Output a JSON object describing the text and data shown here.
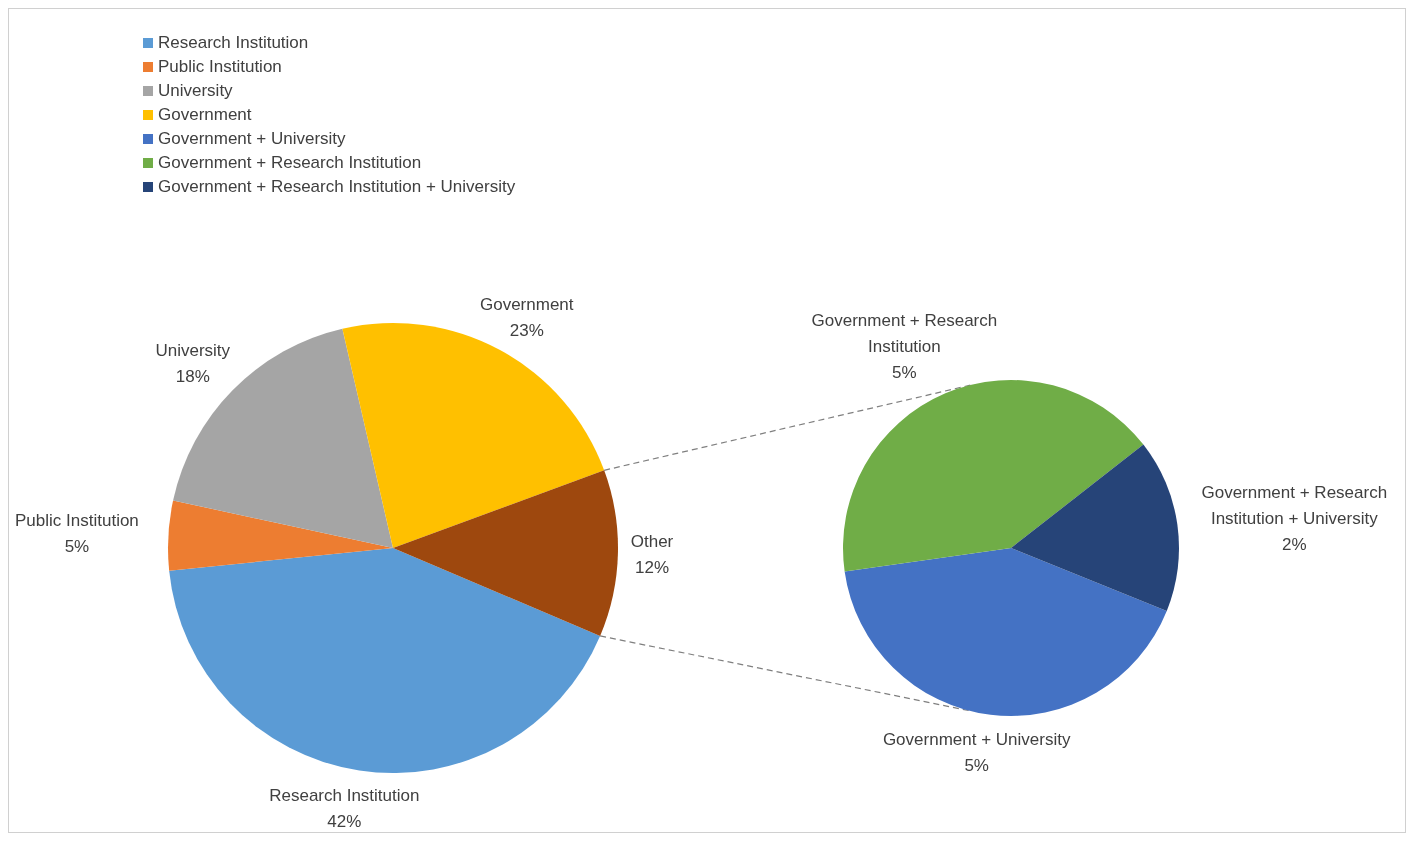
{
  "chart_data": [
    {
      "type": "pie",
      "categories": [
        "Research Institution",
        "Public Institution",
        "University",
        "Government",
        "Other"
      ],
      "values": [
        42,
        5,
        18,
        23,
        12
      ],
      "colors": [
        "#5b9bd5",
        "#ed7d31",
        "#a5a5a5",
        "#ffc000",
        "#9e480e"
      ],
      "value_labels": [
        "42%",
        "5%",
        "18%",
        "23%",
        "12%"
      ],
      "legend": "top left"
    },
    {
      "type": "pie",
      "categories": [
        "Government + University",
        "Government + Research Institution",
        "Government + Research Institution + University"
      ],
      "values": [
        5,
        5,
        2
      ],
      "colors": [
        "#4472c4",
        "#70ad47",
        "#264478"
      ],
      "value_labels": [
        "5%",
        "5%",
        "2%"
      ],
      "legend": "top left"
    }
  ]
}
